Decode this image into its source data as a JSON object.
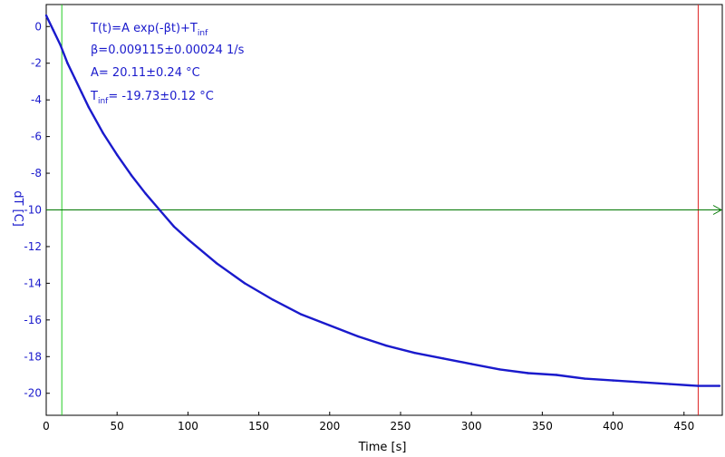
{
  "chart_data": {
    "type": "line",
    "xlabel": "Time [s]",
    "ylabel": "dT [C]",
    "xlim": [
      0,
      477
    ],
    "ylim": [
      -21.2,
      1.2
    ],
    "x_ticks": [
      0,
      50,
      100,
      150,
      200,
      250,
      300,
      350,
      400,
      450
    ],
    "x_tick_labels": [
      "0",
      "50",
      "100",
      "150",
      "200",
      "250",
      "300",
      "350",
      "400",
      "450"
    ],
    "y_ticks": [
      0,
      -2,
      -4,
      -6,
      -8,
      -10,
      -12,
      -14,
      -16,
      -18,
      -20
    ],
    "y_tick_labels": [
      "0",
      "-2",
      "-4",
      "-6",
      "-8",
      "-10",
      "-12",
      "-14",
      "-16",
      "-18",
      "-20"
    ],
    "grid": false,
    "series": [
      {
        "values_x": [
          0,
          5,
          10,
          15,
          20,
          25,
          30,
          40,
          50,
          60,
          70,
          80,
          90,
          100,
          120,
          140,
          160,
          180,
          200,
          220,
          240,
          260,
          280,
          300,
          320,
          340,
          360,
          380,
          400,
          420,
          440,
          460,
          475
        ],
        "values_y": [
          0.6,
          -0.2,
          -1.0,
          -2.0,
          -2.8,
          -3.6,
          -4.4,
          -5.8,
          -7.0,
          -8.1,
          -9.1,
          -10.0,
          -10.9,
          -11.6,
          -12.9,
          -14.0,
          -14.9,
          -15.7,
          -16.3,
          -16.9,
          -17.4,
          -17.8,
          -18.1,
          -18.4,
          -18.7,
          -18.9,
          -19.0,
          -19.2,
          -19.3,
          -19.4,
          -19.5,
          -19.6,
          -19.6
        ],
        "color": "#1a1acc"
      }
    ],
    "markers": {
      "vertical_left": {
        "x": 11,
        "color": "#22cc22"
      },
      "vertical_right": {
        "x": 460,
        "color": "#dd2222"
      },
      "horizontal": {
        "y": -10,
        "color": "#007700"
      }
    },
    "annotations": {
      "formula_main": "T(t)=A exp(-βt)+T",
      "formula_sub": "inf",
      "beta": "β=0.009115±0.00024 1/s",
      "amp": "A= 20.11±0.24 °C",
      "tinf_main": "T",
      "tinf_sub": "inf",
      "tinf_value": "= -19.73±0.12 °C"
    }
  }
}
